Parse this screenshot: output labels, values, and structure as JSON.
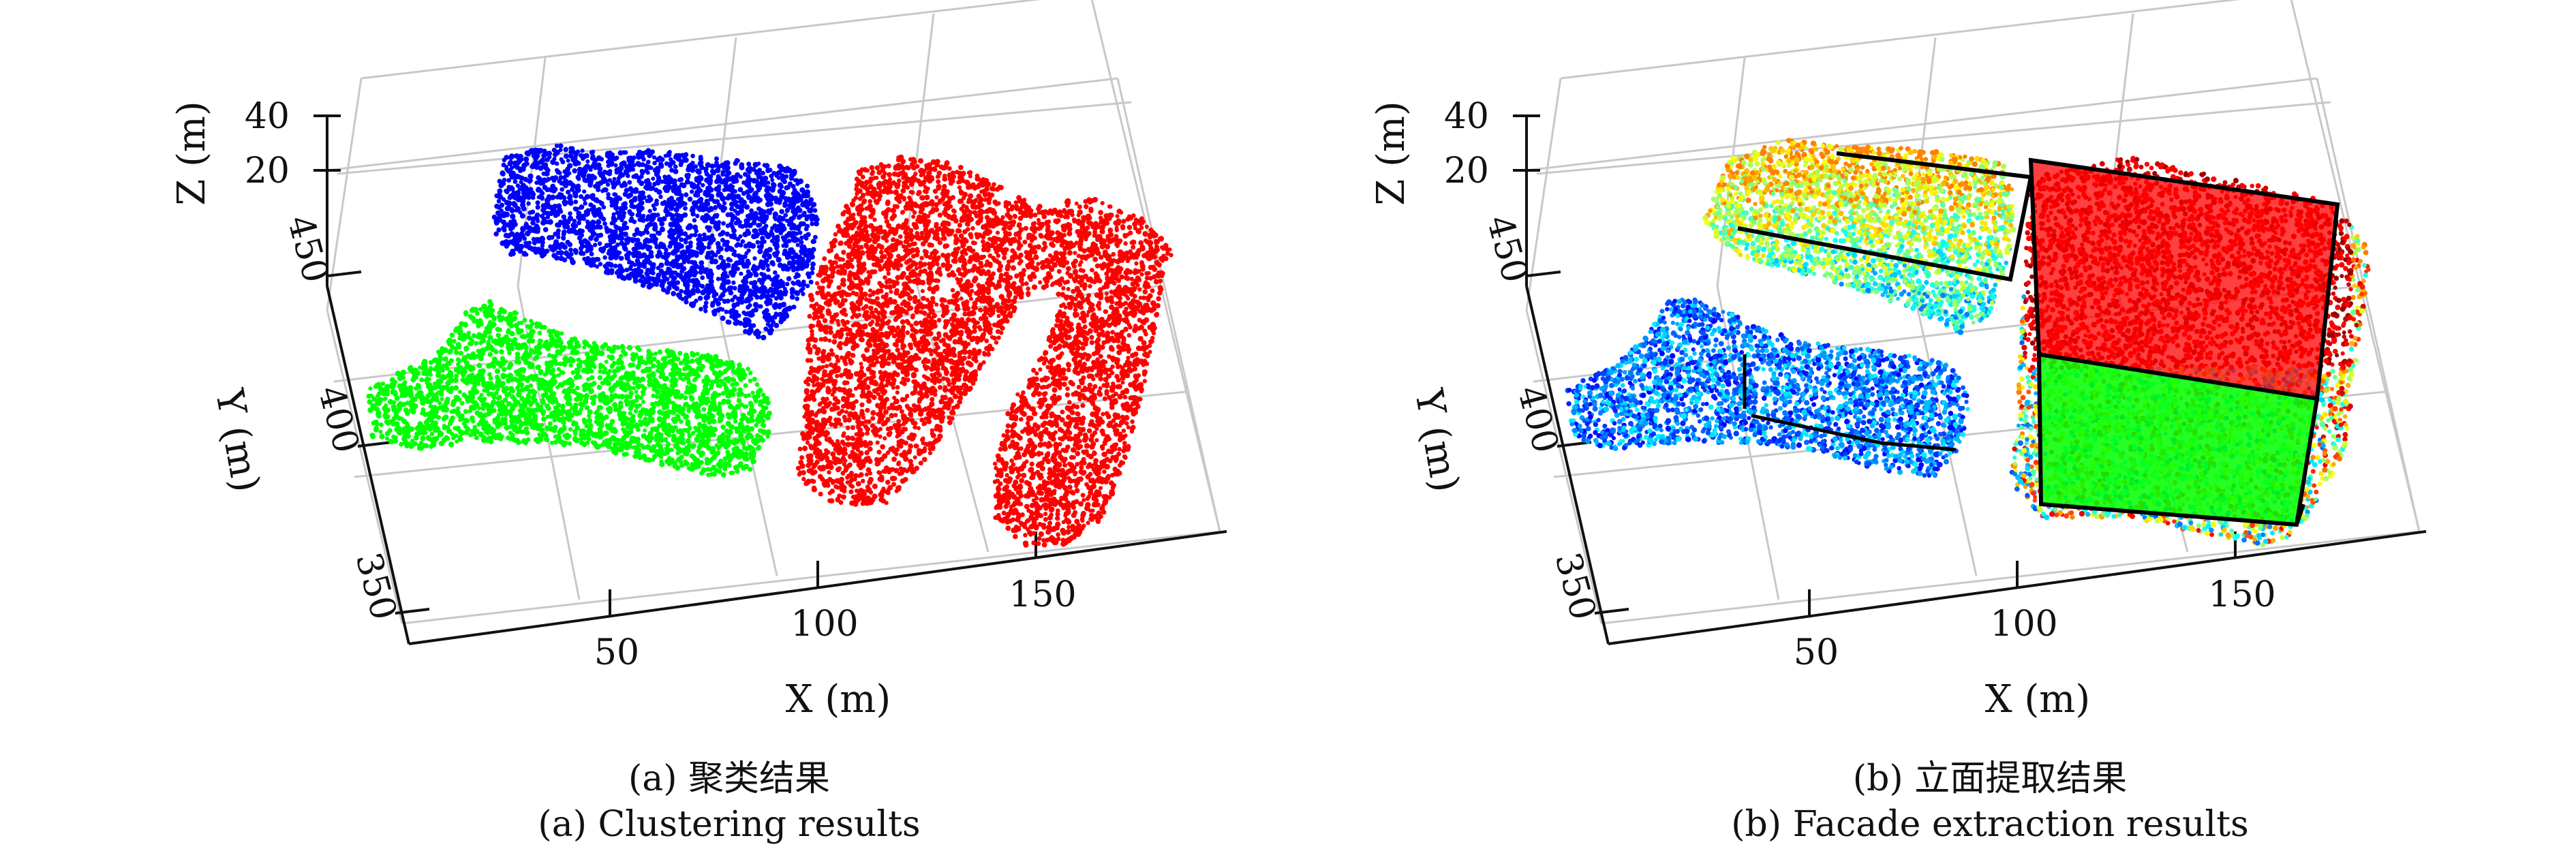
{
  "chart_data": [
    {
      "type": "scatter",
      "subtype": "3d-point-cloud",
      "xlabel": "X (m)",
      "ylabel": "Y (m)",
      "zlabel": "Z (m)",
      "xticks": [
        "50",
        "100",
        "150"
      ],
      "yticks": [
        "350",
        "400",
        "450"
      ],
      "zticks": [
        "20",
        "40"
      ],
      "caption_cn": "(a) 聚类结果",
      "caption_en": "(a) Clustering results",
      "clusters": [
        {
          "color": "#0000ff",
          "x_range": [
            30,
            80
          ],
          "y_range": [
            440,
            470
          ]
        },
        {
          "color": "#00ff00",
          "x_range": [
            5,
            75
          ],
          "y_range": [
            390,
            420
          ]
        },
        {
          "color": "#ff0000",
          "x_range": [
            95,
            165
          ],
          "y_range": [
            365,
            460
          ]
        }
      ]
    },
    {
      "type": "scatter",
      "subtype": "3d-point-cloud",
      "xlabel": "X (m)",
      "ylabel": "Y (m)",
      "zlabel": "Z (m)",
      "xticks": [
        "50",
        "100",
        "150"
      ],
      "yticks": [
        "350",
        "400",
        "450"
      ],
      "zticks": [
        "20",
        "40"
      ],
      "caption_cn": "(b) 立面提取结果",
      "caption_en": "(b) Facade extraction results",
      "colormap": "jet (by height)",
      "extracted_facade_colors": {
        "roof": "#ff0000",
        "facade": "#00ff00",
        "outline": "#000000"
      }
    }
  ]
}
